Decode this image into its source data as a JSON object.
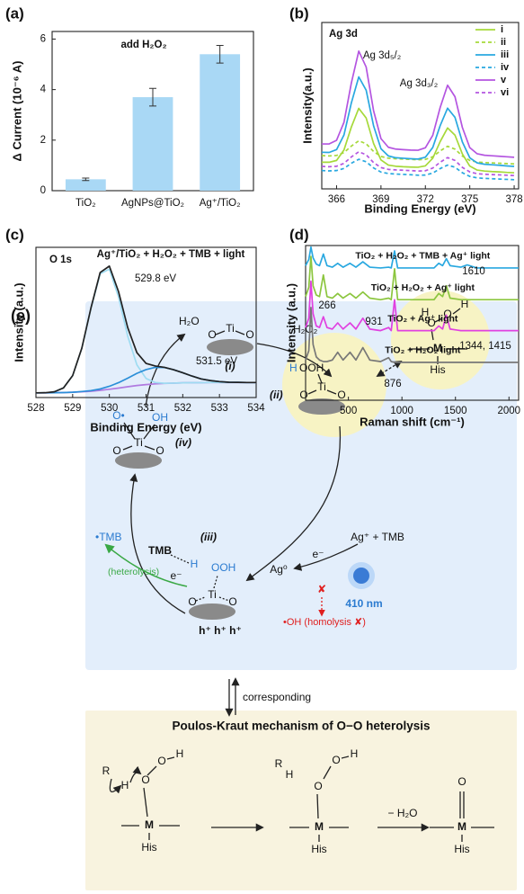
{
  "chart_data": [
    {
      "type": "bar",
      "panel": "(a)",
      "y_label": "Δ Current (10⁻⁶ A)",
      "categories": [
        "TiO₂",
        "AgNPs@TiO₂",
        "Ag⁺/TiO₂"
      ],
      "values": [
        0.45,
        3.7,
        5.4
      ],
      "errors": [
        0.05,
        0.35,
        0.35
      ],
      "color": "#a9d8f5",
      "ylim": [
        0,
        6.3
      ],
      "yticks": [
        0,
        2,
        4,
        6
      ],
      "annotations": [
        "add H₂O₂"
      ]
    },
    {
      "type": "line",
      "panel": "(b)",
      "x_label": "Binding Energy (eV)",
      "y_label": "Intensity(a.u.)",
      "x": [
        365,
        365.5,
        366,
        366.5,
        367,
        367.5,
        368,
        368.5,
        369,
        369.5,
        370,
        370.5,
        371,
        371.5,
        372,
        372.5,
        373,
        373.5,
        374,
        374.5,
        375,
        375.5,
        376,
        376.5,
        377,
        377.5,
        378
      ],
      "xlim": [
        365,
        378.3
      ],
      "xticks": [
        366,
        369,
        372,
        375,
        378
      ],
      "ylim": [
        0,
        10
      ],
      "legend": "upper right",
      "series": [
        {
          "name": "i",
          "color": "#a6d93a",
          "dash": false,
          "values": [
            1.6,
            1.6,
            1.71,
            2.34,
            3.72,
            4.84,
            4.26,
            2.73,
            1.74,
            1.43,
            1.36,
            1.33,
            1.31,
            1.3,
            1.38,
            1.84,
            2.84,
            3.66,
            3.23,
            2.1,
            1.37,
            1.13,
            1.07,
            1.04,
            1.02,
            0.99,
            0.97
          ]
        },
        {
          "name": "ii",
          "color": "#a6d93a",
          "dash": true,
          "values": [
            2.0,
            1.98,
            2.01,
            2.18,
            2.57,
            2.89,
            2.71,
            2.25,
            1.95,
            1.84,
            1.81,
            1.79,
            1.77,
            1.75,
            1.77,
            1.93,
            2.28,
            2.56,
            2.39,
            1.97,
            1.71,
            1.61,
            1.58,
            1.56,
            1.54,
            1.52,
            1.5
          ]
        },
        {
          "name": "iii",
          "color": "#29a8e0",
          "dash": false,
          "values": [
            2.2,
            2.19,
            2.36,
            3.24,
            5.17,
            6.73,
            5.93,
            3.79,
            2.41,
            1.98,
            1.87,
            1.84,
            1.81,
            1.79,
            1.9,
            2.49,
            3.8,
            4.85,
            4.3,
            2.82,
            1.87,
            1.56,
            1.48,
            1.45,
            1.42,
            1.38,
            1.35
          ]
        },
        {
          "name": "iv",
          "color": "#29a8e0",
          "dash": true,
          "values": [
            1.1,
            1.08,
            1.1,
            1.23,
            1.54,
            1.78,
            1.63,
            1.26,
            1.01,
            0.92,
            0.89,
            0.87,
            0.85,
            0.82,
            0.83,
            0.95,
            1.22,
            1.43,
            1.3,
            0.97,
            0.75,
            0.66,
            0.63,
            0.61,
            0.59,
            0.57,
            0.55
          ]
        },
        {
          "name": "v",
          "color": "#b455e0",
          "dash": false,
          "values": [
            2.7,
            2.7,
            2.92,
            4.0,
            6.37,
            8.28,
            7.32,
            4.7,
            3.02,
            2.5,
            2.39,
            2.36,
            2.33,
            2.32,
            2.47,
            3.22,
            4.89,
            6.23,
            5.54,
            3.69,
            2.48,
            2.11,
            2.02,
            1.99,
            1.96,
            1.93,
            1.9
          ]
        },
        {
          "name": "vi",
          "color": "#b455e0",
          "dash": true,
          "values": [
            1.35,
            1.33,
            1.36,
            1.53,
            1.92,
            2.23,
            2.05,
            1.58,
            1.28,
            1.17,
            1.14,
            1.12,
            1.1,
            1.07,
            1.09,
            1.25,
            1.6,
            1.88,
            1.71,
            1.29,
            1.02,
            0.91,
            0.88,
            0.86,
            0.84,
            0.82,
            0.8
          ]
        }
      ],
      "annotations": [
        "Ag 3d",
        "Ag 3d₅/₂",
        "Ag 3d₃/₂"
      ]
    },
    {
      "type": "line",
      "panel": "(c)",
      "x_label": "Binding Energy (eV)",
      "y_label": "Intensity (a.u.)",
      "x": [
        528,
        528.25,
        528.5,
        528.75,
        529,
        529.25,
        529.5,
        529.75,
        530,
        530.25,
        530.5,
        530.75,
        531,
        531.25,
        531.5,
        531.75,
        532,
        532.25,
        532.5,
        532.75,
        533,
        533.25,
        533.5,
        533.75,
        534
      ],
      "xlim": [
        528,
        534
      ],
      "xticks": [
        528,
        529,
        530,
        531,
        532,
        533,
        534
      ],
      "ylim": [
        0,
        10
      ],
      "series": [
        {
          "color": "#b07ae0",
          "dash": false,
          "values": [
            0.31,
            0.31,
            0.32,
            0.33,
            0.35,
            0.38,
            0.42,
            0.48,
            0.55,
            0.63,
            0.72,
            0.8,
            0.86,
            0.91,
            0.94,
            0.96,
            0.98,
            0.99,
            0.99,
            1.0,
            1.0,
            1.0,
            1.0,
            1.0,
            1.0
          ]
        },
        {
          "color": "#9fdcf2",
          "dash": false,
          "values": [
            0.31,
            0.32,
            0.38,
            0.64,
            1.46,
            3.27,
            5.94,
            8.24,
            8.55,
            6.69,
            4.09,
            2.18,
            1.27,
            1.0,
            0.95,
            0.96,
            0.98,
            0.99,
            0.99,
            1.0,
            1.0,
            1.0,
            1.0,
            1.0,
            1.0
          ]
        },
        {
          "color": "#2b8fd8",
          "dash": false,
          "values": [
            0.31,
            0.31,
            0.32,
            0.33,
            0.35,
            0.4,
            0.46,
            0.57,
            0.75,
            0.99,
            1.29,
            1.61,
            1.86,
            2.01,
            2.0,
            1.85,
            1.65,
            1.43,
            1.24,
            1.13,
            1.06,
            1.02,
            1.01,
            1.0,
            1.0
          ]
        },
        {
          "color": "#222222",
          "dash": false,
          "values": [
            0.31,
            0.32,
            0.38,
            0.64,
            1.46,
            3.29,
            5.98,
            8.33,
            8.75,
            7.05,
            4.66,
            2.99,
            2.27,
            2.1,
            2.01,
            1.85,
            1.65,
            1.43,
            1.24,
            1.13,
            1.06,
            1.02,
            1.01,
            1.0,
            1.0
          ]
        }
      ],
      "annotations": [
        "O 1s",
        "Ag⁺/TiO₂ + H₂O₂ + TMB + light",
        "529.8 eV",
        "531.5 eV"
      ]
    },
    {
      "type": "line",
      "panel": "(d)",
      "x_label": "Raman shift (cm⁻¹)",
      "y_label": "Intensity (a.u.)",
      "x": [
        100,
        130,
        150,
        170,
        200,
        230,
        266,
        300,
        350,
        400,
        450,
        515,
        570,
        635,
        700,
        800,
        876,
        900,
        931,
        960,
        1100,
        1300,
        1344,
        1380,
        1415,
        1450,
        1550,
        1610,
        1700,
        1900,
        2090
      ],
      "xlim": [
        100,
        2090
      ],
      "xticks": [
        500,
        1000,
        1500,
        2000
      ],
      "ylim": [
        0,
        10
      ],
      "series_labels": "inline",
      "series": [
        {
          "name": "TiO₂ + H₂O₂ + TMB + Ag⁺ light",
          "color": "#29a8e0",
          "dash": false,
          "values": [
            8.7,
            9.1,
            9.9,
            9.2,
            8.8,
            8.7,
            9.45,
            8.7,
            8.6,
            8.85,
            8.6,
            8.85,
            8.6,
            8.95,
            8.6,
            8.55,
            8.6,
            8.55,
            9.65,
            8.55,
            8.55,
            8.55,
            8.85,
            8.7,
            9.15,
            8.7,
            8.6,
            8.75,
            8.55,
            8.55,
            8.55
          ]
        },
        {
          "name": "TiO₂ + H₂O₂ + Ag⁺ light",
          "color": "#8cc63f",
          "dash": false,
          "values": [
            6.7,
            7.3,
            9.3,
            7.4,
            6.8,
            6.7,
            8.1,
            6.7,
            6.6,
            6.9,
            6.6,
            6.9,
            6.6,
            7.0,
            6.6,
            6.5,
            6.6,
            6.5,
            8.5,
            6.5,
            6.5,
            6.5,
            6.9,
            6.7,
            7.4,
            6.6,
            6.5,
            6.5,
            6.5,
            6.5,
            6.5
          ]
        },
        {
          "name": "TiO₂ + Ag⁺ light",
          "color": "#e040e0",
          "dash": false,
          "values": [
            4.7,
            5.3,
            7.7,
            5.6,
            4.8,
            4.7,
            5.4,
            4.7,
            4.6,
            5.0,
            4.6,
            5.0,
            4.6,
            5.3,
            4.6,
            4.5,
            4.7,
            4.5,
            6.5,
            4.5,
            4.5,
            4.5,
            4.8,
            4.6,
            5.5,
            4.6,
            4.5,
            4.5,
            4.5,
            4.5,
            4.5
          ]
        },
        {
          "name": "TiO₂ + H₂O₂ light",
          "color": "#777777",
          "dash": false,
          "values": [
            2.6,
            3.2,
            6.0,
            3.6,
            2.8,
            2.6,
            2.5,
            2.5,
            2.6,
            3.1,
            2.6,
            3.1,
            2.6,
            3.4,
            2.6,
            2.5,
            2.75,
            2.5,
            2.45,
            2.45,
            2.45,
            2.45,
            2.45,
            2.45,
            2.45,
            2.45,
            2.45,
            2.45,
            2.45,
            2.45,
            2.45
          ]
        }
      ],
      "annotations": [
        "266",
        "931",
        "1344, 1415",
        "1610",
        "876"
      ]
    }
  ],
  "scheme": {
    "labels": [
      "(e)",
      "H₂O",
      "O",
      "Ti",
      "O",
      "(i)",
      "H₂O₂",
      "H",
      "OOH",
      "O",
      "Ti",
      "O",
      "(ii)",
      "H",
      "O",
      "O",
      "H",
      "M",
      "His",
      "O•",
      "OH",
      "O",
      "Ti",
      "O",
      "(iv)",
      "•TMB",
      "(heterolysis)",
      "TMB",
      "(iii)",
      "H",
      "OOH",
      "e⁻",
      "O",
      "Ti",
      "O",
      "h⁺ h⁺ h⁺",
      "Ag⁰",
      "e⁻",
      "Ag⁺ + TMB",
      "410 nm",
      "✘",
      "•OH (homolysis ✘)",
      "corresponding",
      "Poulos-Kraut mechanism of O−O heterolysis",
      "R",
      "H",
      "O",
      "O",
      "H",
      "M",
      "His",
      "R",
      "H",
      "O",
      "O",
      "H",
      "M",
      "His",
      "− H₂O",
      "O",
      "M",
      "His"
    ]
  }
}
